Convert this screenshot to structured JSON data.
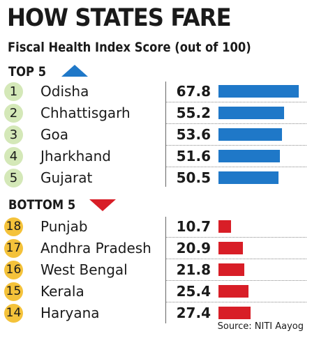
{
  "title": "HOW STATES FARE",
  "subtitle": "Fiscal Health Index Score (out of 100)",
  "top_label": "TOP 5",
  "bottom_label": "BOTTOM 5",
  "source": "Source: NITI Aayog",
  "colors": {
    "top_bar": "#1f78c8",
    "bottom_bar": "#d81e27",
    "top_rank": "#d4e8b8",
    "bottom_rank": "#f4c23a"
  },
  "chart_data": {
    "type": "bar",
    "title": "HOW STATES FARE",
    "subtitle": "Fiscal Health Index Score (out of 100)",
    "orientation": "horizontal",
    "ylim": [
      0,
      100
    ],
    "groups": [
      {
        "name": "TOP 5",
        "ranks": [
          "1",
          "2",
          "3",
          "4",
          "5"
        ],
        "categories": [
          "Odisha",
          "Chhattisgarh",
          "Goa",
          "Jharkhand",
          "Gujarat"
        ],
        "labels": [
          "67.8",
          "55.2",
          "53.6",
          "51.6",
          "50.5"
        ],
        "values": [
          67.8,
          55.2,
          53.6,
          51.6,
          50.5
        ]
      },
      {
        "name": "BOTTOM 5",
        "ranks": [
          "18",
          "17",
          "16",
          "15",
          "14"
        ],
        "categories": [
          "Punjab",
          "Andhra Pradesh",
          "West Bengal",
          "Kerala",
          "Haryana"
        ],
        "labels": [
          "10.7",
          "20.9",
          "21.8",
          "25.4",
          "27.4"
        ],
        "values": [
          10.7,
          20.9,
          21.8,
          25.4,
          27.4
        ]
      }
    ]
  }
}
